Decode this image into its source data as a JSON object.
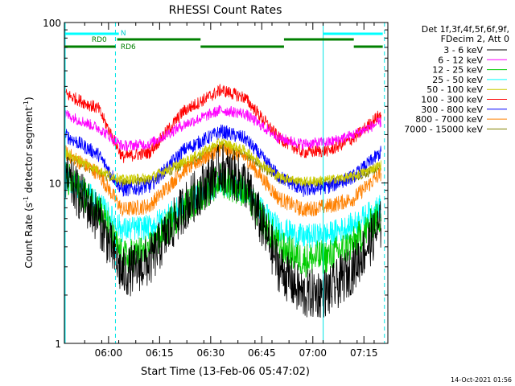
{
  "chart_data": {
    "type": "line",
    "title": "RHESSI Count Rates",
    "xlabel": "Start Time (13-Feb-06 05:47:02)",
    "ylabel_main": "Count Rate (s",
    "ylabel_sup1": "-1",
    "ylabel_mid": " detector segment",
    "ylabel_sup2": "-1",
    "ylabel_end": ")",
    "yscale": "log",
    "ylim": [
      1,
      100
    ],
    "xlim_minutes": [
      0,
      95
    ],
    "y_ticks": [
      {
        "value": 1,
        "label": "1"
      },
      {
        "value": 10,
        "label": "10"
      },
      {
        "value": 100,
        "label": "100"
      }
    ],
    "x_ticks": [
      {
        "label": "06:00"
      },
      {
        "label": "06:15"
      },
      {
        "label": "06:30"
      },
      {
        "label": "06:45"
      },
      {
        "label": "07:00"
      },
      {
        "label": "07:15"
      }
    ],
    "x_tick_minutes": [
      12.97,
      27.97,
      42.97,
      57.97,
      72.97,
      87.97
    ],
    "legend": {
      "header1": "Det 1f,3f,4f,5f,6f,9f,",
      "header2": "FDecim 2, Att 0",
      "position": "right"
    },
    "series": [
      {
        "name": "3 - 6 keV",
        "color": "#000000",
        "points": [
          [
            0,
            11
          ],
          [
            10,
            6
          ],
          [
            17,
            2.7
          ],
          [
            25,
            3.2
          ],
          [
            35,
            7
          ],
          [
            46,
            12.5
          ],
          [
            53,
            10
          ],
          [
            63,
            3
          ],
          [
            70,
            2
          ],
          [
            78,
            2.1
          ],
          [
            85,
            3
          ],
          [
            93,
            5.5
          ]
        ]
      },
      {
        "name": "6 - 12 keV",
        "color": "#ff00ff",
        "points": [
          [
            0,
            27
          ],
          [
            10,
            22
          ],
          [
            17,
            17
          ],
          [
            25,
            17.5
          ],
          [
            35,
            23
          ],
          [
            46,
            28.5
          ],
          [
            53,
            27
          ],
          [
            63,
            19
          ],
          [
            70,
            17.5
          ],
          [
            78,
            18
          ],
          [
            85,
            20
          ],
          [
            93,
            24
          ]
        ]
      },
      {
        "name": "12 - 25 keV",
        "color": "#00cc00",
        "points": [
          [
            0,
            11
          ],
          [
            10,
            7
          ],
          [
            17,
            3.4
          ],
          [
            25,
            3.8
          ],
          [
            35,
            7
          ],
          [
            46,
            10.5
          ],
          [
            53,
            9
          ],
          [
            63,
            4
          ],
          [
            70,
            3.3
          ],
          [
            78,
            3.5
          ],
          [
            85,
            4.2
          ],
          [
            93,
            6.3
          ]
        ]
      },
      {
        "name": "25 - 50 keV",
        "color": "#00ffff",
        "points": [
          [
            0,
            11
          ],
          [
            10,
            7.5
          ],
          [
            17,
            5.1
          ],
          [
            25,
            5.3
          ],
          [
            35,
            7.2
          ],
          [
            46,
            10
          ],
          [
            53,
            9
          ],
          [
            63,
            5.2
          ],
          [
            70,
            4.6
          ],
          [
            78,
            4.8
          ],
          [
            85,
            5.5
          ],
          [
            93,
            7.2
          ]
        ]
      },
      {
        "name": "50 - 100 keV",
        "color": "#cccc00",
        "points": [
          [
            0,
            15.5
          ],
          [
            10,
            12
          ],
          [
            17,
            10.5
          ],
          [
            25,
            10.8
          ],
          [
            35,
            13.5
          ],
          [
            46,
            18
          ],
          [
            53,
            16
          ],
          [
            63,
            11
          ],
          [
            70,
            10.2
          ],
          [
            78,
            10.5
          ],
          [
            85,
            11
          ],
          [
            93,
            13
          ]
        ]
      },
      {
        "name": "100 - 300 keV",
        "color": "#ff0000",
        "points": [
          [
            0,
            36
          ],
          [
            10,
            29
          ],
          [
            17,
            14.5
          ],
          [
            25,
            15.5
          ],
          [
            35,
            28
          ],
          [
            46,
            38
          ],
          [
            53,
            34
          ],
          [
            63,
            19
          ],
          [
            70,
            15.5
          ],
          [
            78,
            16
          ],
          [
            85,
            19
          ],
          [
            93,
            27
          ]
        ]
      },
      {
        "name": "300 - 800 keV",
        "color": "#0000ff",
        "points": [
          [
            0,
            20
          ],
          [
            10,
            15
          ],
          [
            17,
            9
          ],
          [
            25,
            9.5
          ],
          [
            35,
            16
          ],
          [
            46,
            21
          ],
          [
            53,
            19
          ],
          [
            63,
            11
          ],
          [
            70,
            9
          ],
          [
            78,
            9.5
          ],
          [
            85,
            11
          ],
          [
            93,
            15.5
          ]
        ]
      },
      {
        "name": "800 - 7000 keV",
        "color": "#ff8000",
        "points": [
          [
            0,
            15.5
          ],
          [
            10,
            11.5
          ],
          [
            17,
            6.8
          ],
          [
            25,
            7.2
          ],
          [
            35,
            12
          ],
          [
            46,
            16.5
          ],
          [
            53,
            14.5
          ],
          [
            63,
            8
          ],
          [
            70,
            6.8
          ],
          [
            78,
            7.2
          ],
          [
            85,
            8
          ],
          [
            93,
            11.5
          ]
        ]
      },
      {
        "name": "7000 - 15000 keV",
        "color": "#808000",
        "points": [
          [
            0,
            15
          ],
          [
            10,
            11.5
          ],
          [
            17,
            10
          ],
          [
            25,
            10.3
          ],
          [
            35,
            13
          ],
          [
            46,
            17
          ],
          [
            53,
            15
          ],
          [
            63,
            10.5
          ],
          [
            70,
            10
          ],
          [
            78,
            10.2
          ],
          [
            85,
            10.8
          ],
          [
            93,
            12.5
          ]
        ]
      }
    ],
    "annotations": {
      "labels": [
        "N",
        "RD0",
        "RD6"
      ],
      "vertical_line_minutes_solid": [
        0,
        76
      ],
      "vertical_line_minutes_dashed": [
        15,
        94
      ],
      "bar_cyan_segments": [
        [
          0,
          16
        ],
        [
          76,
          93.5
        ]
      ],
      "bar_green_upper_segments": [
        [
          15.5,
          40
        ],
        [
          64.5,
          85
        ]
      ],
      "bar_green_lower_segments": [
        [
          0,
          15
        ],
        [
          40,
          64.5
        ],
        [
          85,
          93.5
        ]
      ]
    }
  },
  "timestamp": "14-Oct-2021 01:56"
}
